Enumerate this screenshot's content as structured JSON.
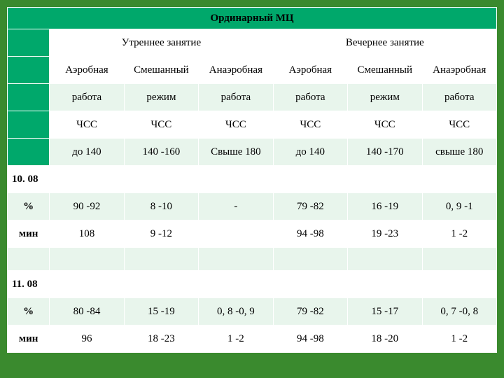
{
  "title": "Ординарный МЦ",
  "sessions": {
    "morning": "Утреннее занятие",
    "evening": "Вечернее занятие"
  },
  "hdr": {
    "r1": [
      "Аэробная",
      "Смешанный",
      "Анаэробная",
      "Аэробная",
      "Смешанный",
      "Анаэробная"
    ],
    "r2": [
      "работа",
      "режим",
      "работа",
      "работа",
      "режим",
      "работа"
    ],
    "r3": [
      "ЧСС",
      "ЧСС",
      "ЧСС",
      "ЧСС",
      "ЧСС",
      "ЧСС"
    ],
    "r4": [
      "до 140",
      "140 -160",
      "Свыше 180",
      "до 140",
      "140 -170",
      "свыше 180"
    ]
  },
  "sections": [
    {
      "date": "10. 08",
      "rows": [
        {
          "label": "%",
          "cells": [
            "90 -92",
            "8 -10",
            "-",
            "79 -82",
            "16 -19",
            "0, 9 -1"
          ]
        },
        {
          "label": "мин",
          "cells": [
            "108",
            "9 -12",
            "",
            "94 -98",
            "19 -23",
            "1 -2"
          ]
        }
      ]
    },
    {
      "date": "11. 08",
      "rows": [
        {
          "label": "%",
          "cells": [
            "80 -84",
            "15 -19",
            "0, 8 -0, 9",
            "79 -82",
            "15 -17",
            "0, 7 -0, 8"
          ]
        },
        {
          "label": "мин",
          "cells": [
            "96",
            "18 -23",
            "1 -2",
            "94 -98",
            "18 -20",
            "1 -2"
          ]
        }
      ]
    }
  ],
  "colors": {
    "page_bg": "#3a8a2e",
    "title_bg": "#00a86b",
    "band_a": "#e8f5ec",
    "band_b": "#ffffff",
    "text": "#000000",
    "border": "#ffffff"
  }
}
